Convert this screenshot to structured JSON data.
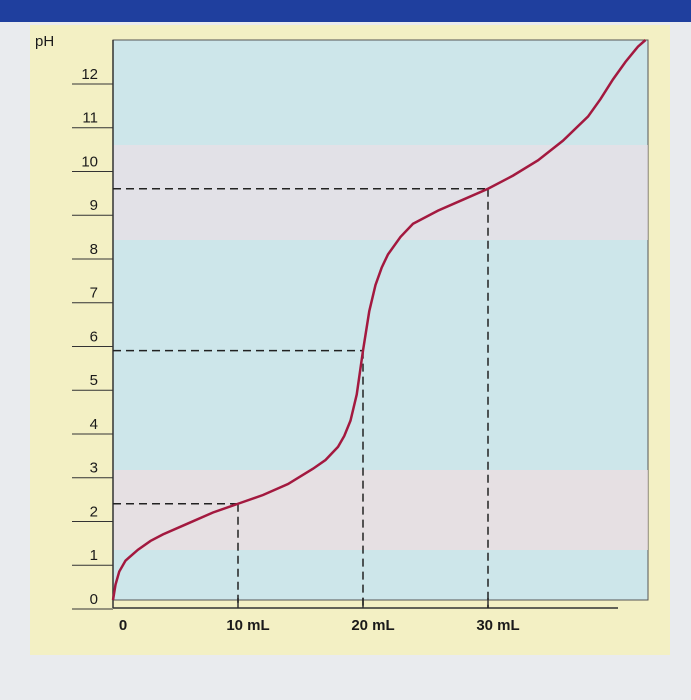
{
  "chart_data": {
    "type": "line",
    "ylabel": "pH",
    "x": [
      0,
      0.2,
      0.5,
      1,
      2,
      3,
      4,
      6,
      8,
      10,
      12,
      14,
      16,
      17,
      18,
      18.5,
      19,
      19.5,
      20,
      20.5,
      21,
      21.5,
      22,
      23,
      24,
      26,
      28,
      30,
      32,
      34,
      36,
      38,
      39,
      40,
      41,
      42,
      42.6
    ],
    "series": [
      {
        "name": "pH",
        "color": "#a3193f",
        "values": [
          0,
          0.35,
          0.65,
          0.9,
          1.15,
          1.35,
          1.5,
          1.75,
          2.0,
          2.2,
          2.4,
          2.65,
          3.0,
          3.2,
          3.5,
          3.75,
          4.1,
          4.7,
          5.7,
          6.6,
          7.2,
          7.6,
          7.9,
          8.3,
          8.6,
          8.9,
          9.15,
          9.4,
          9.7,
          10.05,
          10.5,
          11.05,
          11.45,
          11.9,
          12.3,
          12.65,
          12.8
        ]
      }
    ],
    "reference_points": [
      {
        "x": 10,
        "y": 2.2
      },
      {
        "x": 20,
        "y": 5.7
      },
      {
        "x": 30,
        "y": 9.4
      }
    ],
    "xlim": [
      0,
      42.8
    ],
    "ylim": [
      0,
      12.8
    ],
    "xticks": [
      {
        "value": 0,
        "label": "0"
      },
      {
        "value": 10,
        "label": "10 mL"
      },
      {
        "value": 20,
        "label": "20 mL"
      },
      {
        "value": 30,
        "label": "30 mL"
      }
    ],
    "yticks": [
      0,
      1,
      2,
      3,
      4,
      5,
      6,
      7,
      8,
      9,
      10,
      11,
      12
    ]
  }
}
